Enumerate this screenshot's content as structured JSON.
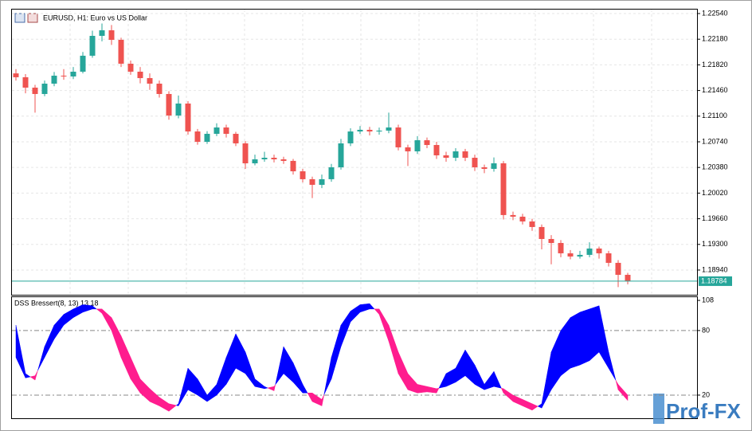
{
  "chart_data": [
    {
      "type": "candlestick",
      "title": "EURUSD, H1:  Euro vs US Dollar",
      "up_color": "#26a69a",
      "down_color": "#ef5350",
      "open": [
        1.217,
        1.21646,
        1.215,
        1.21411,
        1.21556,
        1.21668,
        1.21657,
        1.21724,
        1.21948,
        1.22227,
        1.22305,
        1.22171,
        1.21836,
        1.21724,
        1.21634,
        1.21556,
        1.21411,
        1.21109,
        1.21277,
        1.20885,
        1.2074,
        1.20852,
        1.20941,
        1.20852,
        1.20718,
        1.20438,
        1.20494,
        1.20516,
        1.20494,
        1.20472,
        1.20326,
        1.20215,
        1.20136,
        1.20215,
        1.20382,
        1.20718,
        1.20885,
        1.20908,
        1.20885,
        1.20897,
        1.20941,
        1.20662,
        1.20606,
        1.20762,
        1.20695,
        1.2055,
        1.20516,
        1.20606,
        1.20516,
        1.20382,
        1.2036,
        1.20438,
        1.19712,
        1.19689,
        1.19622,
        1.19544,
        1.19376,
        1.1932,
        1.19175,
        1.1913,
        1.19153,
        1.19242,
        1.19175,
        1.19041,
        1.18873
      ],
      "high": [
        1.2176,
        1.2169,
        1.2154,
        1.216,
        1.2172,
        1.2176,
        1.2179,
        1.22,
        1.223,
        1.224,
        1.2238,
        1.222,
        1.2188,
        1.2179,
        1.217,
        1.216,
        1.2145,
        1.2139,
        1.2131,
        1.2092,
        1.2089,
        1.21,
        1.2098,
        1.2088,
        1.2075,
        1.2056,
        1.206,
        1.2056,
        1.2053,
        1.205,
        1.2036,
        1.2025,
        1.2028,
        1.2043,
        1.2078,
        1.2093,
        1.2096,
        1.2095,
        1.2094,
        1.2115,
        1.2098,
        1.207,
        1.2082,
        1.208,
        1.2074,
        1.206,
        1.2065,
        1.2064,
        1.2056,
        1.2042,
        1.2052,
        1.2047,
        1.1976,
        1.1973,
        1.1966,
        1.1958,
        1.1943,
        1.1936,
        1.1922,
        1.1921,
        1.1933,
        1.1927,
        1.1921,
        1.1908,
        1.189
      ],
      "low": [
        1.216,
        1.2142,
        1.2115,
        1.2138,
        1.2152,
        1.2161,
        1.2162,
        1.217,
        1.2192,
        1.2215,
        1.221,
        1.2179,
        1.2168,
        1.2156,
        1.2147,
        1.2136,
        1.2105,
        1.2107,
        1.2084,
        1.207,
        1.2071,
        1.2082,
        1.208,
        1.2068,
        1.2036,
        1.2041,
        1.2046,
        1.2045,
        1.2043,
        1.2028,
        1.2017,
        1.1995,
        1.2009,
        1.2018,
        1.2035,
        1.2068,
        1.2085,
        1.2083,
        1.2084,
        1.2086,
        1.2062,
        1.204,
        1.2057,
        1.2065,
        1.205,
        1.2046,
        1.2047,
        1.2047,
        1.2033,
        1.203,
        1.2032,
        1.1965,
        1.1964,
        1.1958,
        1.1949,
        1.1923,
        1.1902,
        1.1912,
        1.1909,
        1.191,
        1.1912,
        1.191,
        1.1899,
        1.187,
        1.1874
      ],
      "close": [
        1.21646,
        1.215,
        1.21411,
        1.21556,
        1.21668,
        1.21657,
        1.21724,
        1.21948,
        1.22227,
        1.22305,
        1.22171,
        1.21836,
        1.21724,
        1.21634,
        1.21556,
        1.21411,
        1.21109,
        1.21277,
        1.20885,
        1.2074,
        1.20852,
        1.20941,
        1.20852,
        1.20718,
        1.20438,
        1.20494,
        1.20516,
        1.20494,
        1.20472,
        1.20326,
        1.20215,
        1.20136,
        1.20215,
        1.20382,
        1.20718,
        1.20885,
        1.20908,
        1.20885,
        1.20897,
        1.20941,
        1.20662,
        1.20606,
        1.20762,
        1.20695,
        1.2055,
        1.20516,
        1.20606,
        1.20516,
        1.20382,
        1.2036,
        1.20438,
        1.19712,
        1.19689,
        1.19622,
        1.19544,
        1.19376,
        1.1932,
        1.19175,
        1.1913,
        1.19153,
        1.19242,
        1.19175,
        1.19041,
        1.18873,
        1.18784
      ],
      "current_price": 1.18784,
      "current_color": "#26a69a",
      "ylim": [
        1.18593,
        1.22596
      ],
      "yticks": [
        {
          "value": 1.2254,
          "label": "1.22540"
        },
        {
          "value": 1.2218,
          "label": "1.22180"
        },
        {
          "value": 1.2182,
          "label": "1.21820"
        },
        {
          "value": 1.2146,
          "label": "1.21460"
        },
        {
          "value": 1.211,
          "label": "1.21100"
        },
        {
          "value": 1.2074,
          "label": "1.20740"
        },
        {
          "value": 1.2038,
          "label": "1.20380"
        },
        {
          "value": 1.2002,
          "label": "1.20020"
        },
        {
          "value": 1.1966,
          "label": "1.19660"
        },
        {
          "value": 1.193,
          "label": "1.19300"
        },
        {
          "value": 1.1894,
          "label": "1.18940"
        }
      ],
      "grid": true
    },
    {
      "type": "band",
      "title": "DSS Bressert(8, 13) 13 18",
      "series": [
        {
          "color": "#0000ff",
          "values": [
            85,
            40,
            34,
            65,
            85,
            95,
            100,
            104,
            103,
            96,
            80,
            55,
            35,
            22,
            14,
            10,
            5,
            12,
            45,
            35,
            20,
            30,
            55,
            77,
            60,
            35,
            28,
            24,
            65,
            50,
            30,
            14,
            10,
            55,
            85,
            98,
            104,
            105,
            95,
            70,
            40,
            25,
            22,
            23,
            22,
            40,
            45,
            62,
            48,
            30,
            42,
            22,
            14,
            10,
            6,
            12,
            60,
            80,
            92,
            97,
            100,
            103,
            60,
            25,
            15
          ]
        },
        {
          "color": "#ff1c8e",
          "values": [
            55,
            36,
            38,
            55,
            72,
            85,
            92,
            97,
            100,
            100,
            92,
            75,
            55,
            35,
            26,
            18,
            12,
            10,
            25,
            20,
            14,
            20,
            30,
            45,
            40,
            28,
            26,
            28,
            40,
            32,
            22,
            22,
            16,
            35,
            65,
            88,
            97,
            100,
            100,
            85,
            60,
            40,
            30,
            28,
            26,
            28,
            32,
            38,
            30,
            25,
            28,
            26,
            20,
            16,
            12,
            8,
            25,
            38,
            45,
            48,
            52,
            60,
            45,
            30,
            20
          ]
        }
      ],
      "ylim": [
        -1.5,
        111
      ],
      "yticks": [
        108,
        80,
        20
      ],
      "levels": [
        80,
        20
      ]
    },
    {
      "watermark": "Prof-FX"
    }
  ]
}
